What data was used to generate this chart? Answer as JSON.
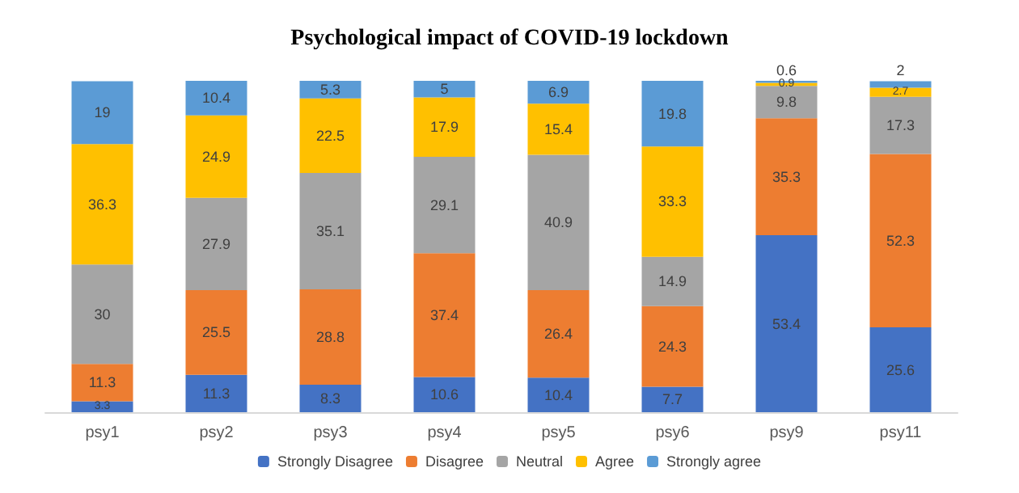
{
  "chart_data": {
    "type": "bar",
    "title": "Psychological impact of COVID-19 lockdown",
    "stacked": true,
    "data_labels": true,
    "legend": "bottom",
    "categories": [
      "psy1",
      "psy2",
      "psy3",
      "psy4",
      "psy5",
      "psy6",
      "psy9",
      "psy11"
    ],
    "series": [
      {
        "name": "Strongly Disagree",
        "color": "#4472c4",
        "values": [
          3.3,
          11.3,
          8.3,
          10.6,
          10.4,
          7.7,
          53.4,
          25.6
        ]
      },
      {
        "name": "Disagree",
        "color": "#ed7d31",
        "values": [
          11.3,
          25.5,
          28.8,
          37.4,
          26.4,
          24.3,
          35.3,
          52.3
        ]
      },
      {
        "name": "Neutral",
        "color": "#a5a5a5",
        "values": [
          30,
          27.9,
          35.1,
          29.1,
          40.9,
          14.9,
          9.8,
          17.3
        ]
      },
      {
        "name": "Agree",
        "color": "#ffc000",
        "values": [
          36.3,
          24.9,
          22.5,
          17.9,
          15.4,
          33.3,
          0.9,
          2.7
        ]
      },
      {
        "name": "Strongly agree",
        "color": "#5b9bd5",
        "values": [
          19,
          10.4,
          5.3,
          5,
          6.9,
          19.8,
          0.6,
          2
        ]
      }
    ]
  }
}
